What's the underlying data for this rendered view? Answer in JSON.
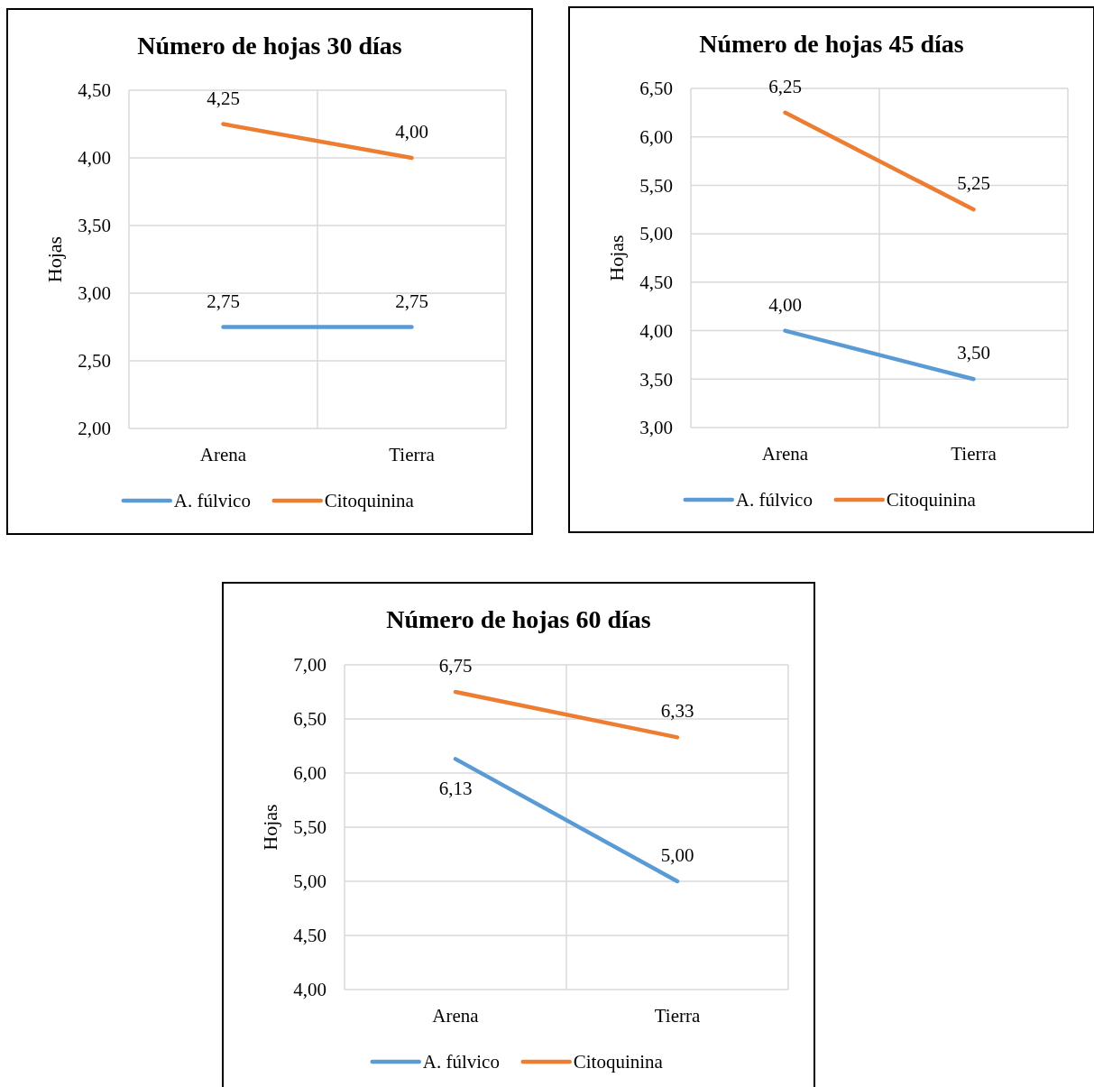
{
  "chart_data": [
    {
      "type": "line",
      "title": "Número de hojas 30 días",
      "ylabel": "Hojas",
      "categories": [
        "Arena",
        "Tierra"
      ],
      "series": [
        {
          "name": "A. fúlvico",
          "color": "#5b9bd5",
          "values": [
            2.75,
            2.75
          ],
          "value_labels": [
            "2,75",
            "2,75"
          ]
        },
        {
          "name": "Citoquinina",
          "color": "#ed7d31",
          "values": [
            4.25,
            4.0
          ],
          "value_labels": [
            "4,25",
            "4,00"
          ]
        }
      ],
      "ylim": [
        2,
        4.5
      ],
      "yticks": [
        {
          "value": 2,
          "label": "2,00"
        },
        {
          "value": 2.5,
          "label": "2,50"
        },
        {
          "value": 3,
          "label": "3,00"
        },
        {
          "value": 3.5,
          "label": "3,50"
        },
        {
          "value": 4,
          "label": "4,00"
        },
        {
          "value": 4.5,
          "label": "4,50"
        }
      ],
      "grid": true,
      "legend": "bottom",
      "marker": "none"
    },
    {
      "type": "line",
      "title": "Número de hojas 45 días",
      "ylabel": "Hojas",
      "categories": [
        "Arena",
        "Tierra"
      ],
      "series": [
        {
          "name": "A. fúlvico",
          "color": "#5b9bd5",
          "values": [
            4.0,
            3.5
          ],
          "value_labels": [
            "4,00",
            "3,50"
          ]
        },
        {
          "name": "Citoquinina",
          "color": "#ed7d31",
          "values": [
            6.25,
            5.25
          ],
          "value_labels": [
            "6,25",
            "5,25"
          ]
        }
      ],
      "ylim": [
        3,
        6.5
      ],
      "yticks": [
        {
          "value": 3,
          "label": "3,00"
        },
        {
          "value": 3.5,
          "label": "3,50"
        },
        {
          "value": 4,
          "label": "4,00"
        },
        {
          "value": 4.5,
          "label": "4,50"
        },
        {
          "value": 5,
          "label": "5,00"
        },
        {
          "value": 5.5,
          "label": "5,50"
        },
        {
          "value": 6,
          "label": "6,00"
        },
        {
          "value": 6.5,
          "label": "6,50"
        }
      ],
      "grid": true,
      "legend": "bottom",
      "marker": "none"
    },
    {
      "type": "line",
      "title": "Número de hojas 60 días",
      "ylabel": "Hojas",
      "categories": [
        "Arena",
        "Tierra"
      ],
      "series": [
        {
          "name": "A. fúlvico",
          "color": "#5b9bd5",
          "values": [
            6.13,
            5.0
          ],
          "value_labels": [
            "6,13",
            "5,00"
          ]
        },
        {
          "name": "Citoquinina",
          "color": "#ed7d31",
          "values": [
            6.75,
            6.33
          ],
          "value_labels": [
            "6,75",
            "6,33"
          ]
        }
      ],
      "ylim": [
        4,
        7
      ],
      "yticks": [
        {
          "value": 4,
          "label": "4,00"
        },
        {
          "value": 4.5,
          "label": "4,50"
        },
        {
          "value": 5,
          "label": "5,00"
        },
        {
          "value": 5.5,
          "label": "5,50"
        },
        {
          "value": 6,
          "label": "6,00"
        },
        {
          "value": 6.5,
          "label": "6,50"
        },
        {
          "value": 7,
          "label": "7,00"
        }
      ],
      "grid": true,
      "legend": "bottom",
      "marker": "none"
    }
  ]
}
